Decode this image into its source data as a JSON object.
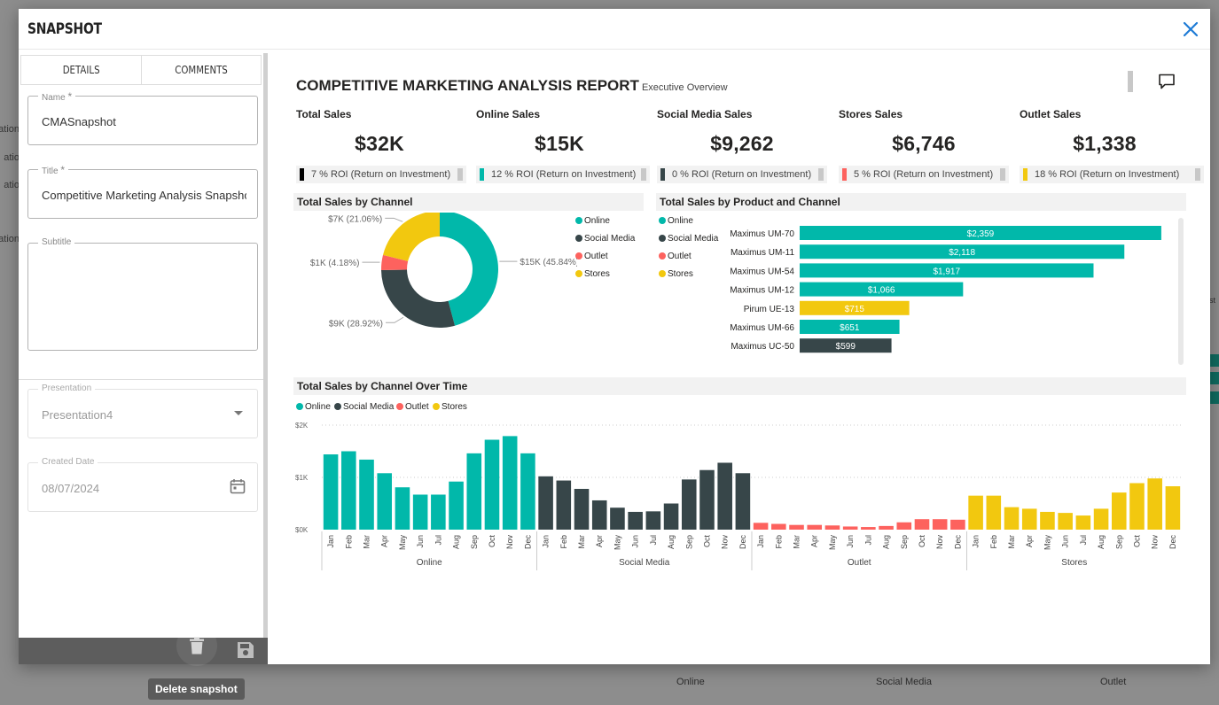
{
  "background": {
    "side_fragments": [
      "ation",
      "atio",
      "atio",
      "ation"
    ],
    "right_fragment": "st",
    "axis_labels": [
      "Online",
      "Social Media",
      "Outlet"
    ]
  },
  "modal": {
    "title": "SNAPSHOT",
    "close_icon": "close-icon"
  },
  "left_panel": {
    "tabs": [
      {
        "label": "DETAILS",
        "active": true
      },
      {
        "label": "COMMENTS",
        "active": false
      }
    ],
    "name": {
      "label": "Name",
      "required": "*",
      "value": "CMASnapshot"
    },
    "title": {
      "label": "Title",
      "required": "*",
      "value": "Competitive Marketing Analysis Snapshot"
    },
    "subtitle": {
      "label": "Subtitle",
      "value": ""
    },
    "presentation": {
      "label": "Presentation",
      "value": "Presentation4"
    },
    "created_date": {
      "label": "Created Date",
      "value": "08/07/2024"
    },
    "footer": {
      "delete_icon": "trash-icon",
      "save_icon": "save-icon"
    },
    "tooltip": "Delete snapshot"
  },
  "report": {
    "title": "COMPETITIVE MARKETING ANALYSIS REPORT",
    "subtitle": "Executive Overview",
    "kpis": [
      {
        "label": "Total Sales",
        "value": "$32K",
        "roi": "7 % ROI (Return on Investment)",
        "color": "#000000"
      },
      {
        "label": "Online Sales",
        "value": "$15K",
        "roi": "12 % ROI (Return on Investment)",
        "color": "#01B8AA"
      },
      {
        "label": "Social Media Sales",
        "value": "$9,262",
        "roi": "0 % ROI (Return on Investment)",
        "color": "#374649"
      },
      {
        "label": "Stores Sales",
        "value": "$6,746",
        "roi": "5 % ROI (Return on Investment)",
        "color": "#FD625E"
      },
      {
        "label": "Outlet Sales",
        "value": "$1,338",
        "roi": "18 % ROI (Return on Investment)",
        "color": "#F2C80F"
      }
    ],
    "panels": {
      "donut_title": "Total Sales by Channel",
      "bar_title": "Total Sales by Product and Channel",
      "time_title": "Total Sales by Channel Over Time"
    }
  },
  "colors": {
    "Online": "#01B8AA",
    "Social Media": "#374649",
    "Outlet": "#FD625E",
    "Stores": "#F2C80F"
  },
  "chart_data": [
    {
      "type": "pie",
      "title": "Total Sales by Channel",
      "legend": [
        "Online",
        "Social Media",
        "Outlet",
        "Stores"
      ],
      "slices": [
        {
          "name": "Online",
          "value": 15,
          "label": "$15K (45.84%)"
        },
        {
          "name": "Social Media",
          "value": 9,
          "label": "$9K (28.92%)"
        },
        {
          "name": "Outlet",
          "value": 1.3,
          "label": "$1K (4.18%)"
        },
        {
          "name": "Stores",
          "value": 6.7,
          "label": "$7K (21.06%)"
        }
      ],
      "percents": [
        45.84,
        28.92,
        4.18,
        21.06
      ]
    },
    {
      "type": "bar",
      "orientation": "horizontal",
      "title": "Total Sales by Product and Channel",
      "legend": [
        "Online",
        "Social Media",
        "Outlet",
        "Stores"
      ],
      "categories": [
        "Maximus UM-70",
        "Maximus UM-11",
        "Maximus UM-54",
        "Maximus UM-12",
        "Pirum UE-13",
        "Maximus UM-66",
        "Maximus UC-50"
      ],
      "values": [
        2359,
        2118,
        1917,
        1066,
        715,
        651,
        599
      ],
      "labels": [
        "$2,359",
        "$2,118",
        "$1,917",
        "$1,066",
        "$715",
        "$651",
        "$599"
      ],
      "channels": [
        "Online",
        "Online",
        "Online",
        "Online",
        "Stores",
        "Online",
        "Social Media"
      ],
      "xlim": [
        0,
        2400
      ]
    },
    {
      "type": "bar",
      "title": "Total Sales by Channel Over Time",
      "legend": [
        "Online",
        "Social Media",
        "Outlet",
        "Stores"
      ],
      "ylim": [
        0,
        2000
      ],
      "yticks": [
        "$0K",
        "$1K",
        "$2K"
      ],
      "months": [
        "Jan",
        "Feb",
        "Mar",
        "Apr",
        "May",
        "Jun",
        "Jul",
        "Aug",
        "Sep",
        "Oct",
        "Nov",
        "Dec"
      ],
      "series": [
        {
          "name": "Online",
          "values": [
            1440,
            1500,
            1340,
            1080,
            810,
            670,
            670,
            920,
            1460,
            1720,
            1790,
            1460
          ]
        },
        {
          "name": "Social Media",
          "values": [
            1020,
            940,
            780,
            560,
            420,
            340,
            350,
            500,
            960,
            1140,
            1280,
            1080
          ]
        },
        {
          "name": "Outlet",
          "values": [
            130,
            110,
            90,
            90,
            80,
            60,
            50,
            70,
            140,
            200,
            200,
            190
          ]
        },
        {
          "name": "Stores",
          "values": [
            650,
            650,
            430,
            400,
            340,
            320,
            270,
            400,
            710,
            890,
            980,
            830
          ]
        }
      ]
    }
  ]
}
